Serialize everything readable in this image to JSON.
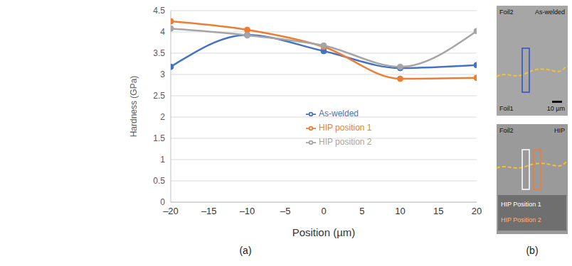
{
  "chart_data": {
    "type": "line",
    "x_label": "Position (µm)",
    "y_label": "Hardness (GPa)",
    "x": [
      -20,
      -10,
      0,
      10,
      20
    ],
    "series": [
      {
        "name": "As-welded",
        "color": "#4472c4",
        "marker": "circle",
        "line_style": "solid",
        "values": [
          3.18,
          3.93,
          3.55,
          3.15,
          3.22
        ]
      },
      {
        "name": "HIP position 1",
        "color": "#ed7d31",
        "marker": "circle",
        "line_style": "solid",
        "values": [
          4.25,
          4.05,
          3.65,
          2.9,
          2.92
        ]
      },
      {
        "name": "HIP position 2",
        "color": "#a5a5a5",
        "marker": "circle",
        "line_style": "solid",
        "values": [
          4.08,
          3.92,
          3.68,
          3.18,
          4.02
        ]
      }
    ],
    "xlim": [
      -20,
      20
    ],
    "xticks": [
      {
        "value": -20,
        "label": "–20"
      },
      {
        "value": -15,
        "label": "–15"
      },
      {
        "value": -10,
        "label": "–10"
      },
      {
        "value": -5,
        "label": "–5"
      },
      0,
      5,
      10,
      15,
      20
    ],
    "ylim": [
      0,
      4.5
    ],
    "yticks": [
      0,
      0.5,
      1,
      1.5,
      2,
      2.5,
      3,
      3.5,
      4,
      4.5
    ],
    "grid": true,
    "legend": "lower right"
  },
  "panel_labels": [
    "(a)",
    "(b)"
  ],
  "micrographs": [
    {
      "upper_left": "Foil2",
      "upper_right": "As-welded",
      "lower_left": "Foil1",
      "scale_bar": "10 µm"
    },
    {
      "upper_left": "Foil2",
      "upper_right": "HIP",
      "position_labels": [
        "HIP Position 1",
        "HIP Position 2"
      ]
    }
  ]
}
